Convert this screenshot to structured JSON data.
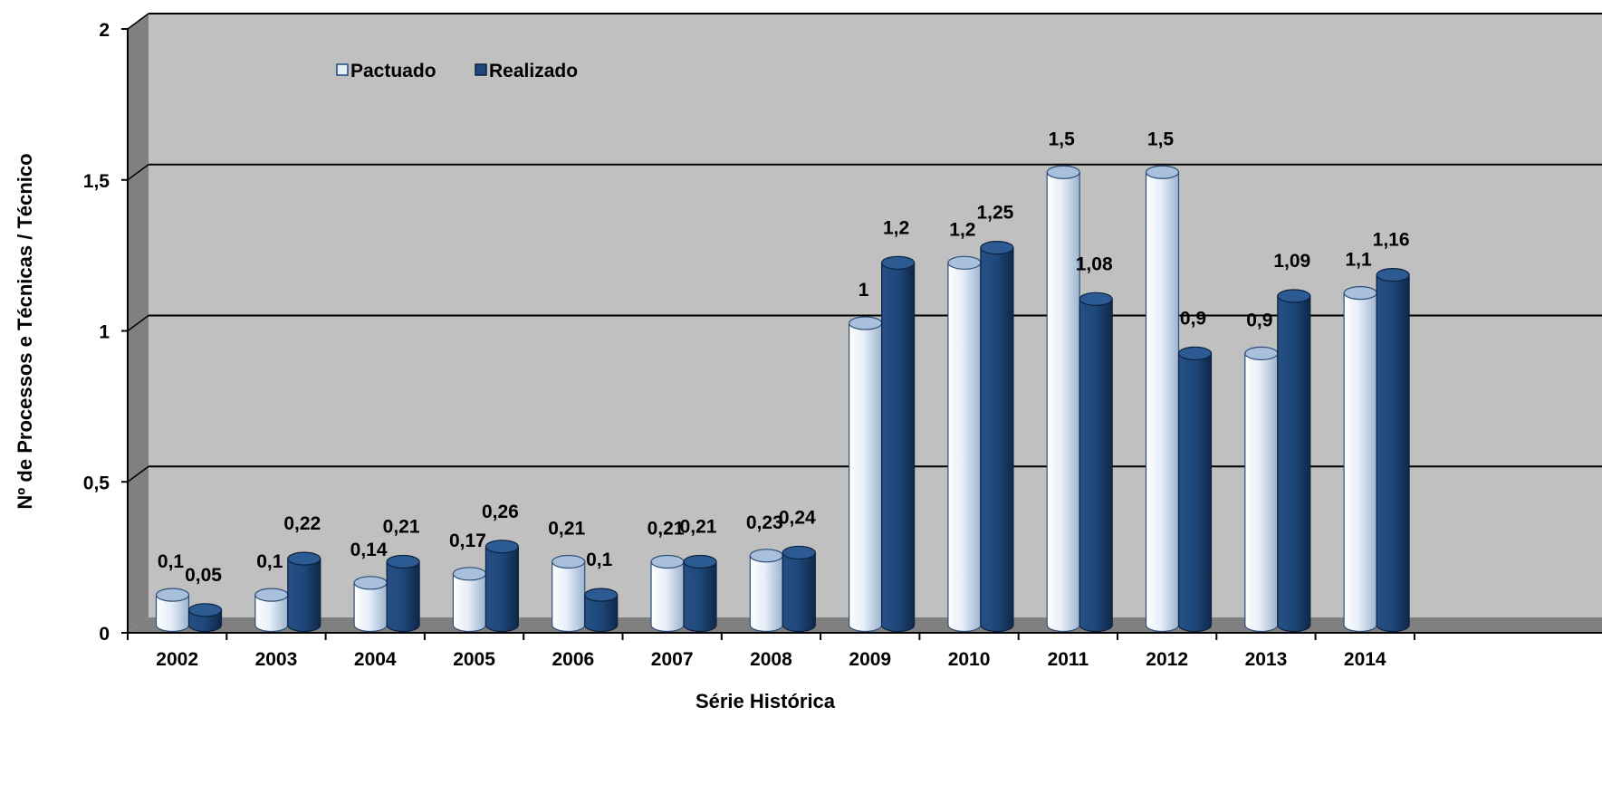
{
  "chart_data": {
    "type": "bar",
    "categories": [
      "2002",
      "2003",
      "2004",
      "2005",
      "2006",
      "2007",
      "2008",
      "2009",
      "2010",
      "2011",
      "2012",
      "2013",
      "2014"
    ],
    "series": [
      {
        "name": "Pactuado",
        "color": "#c6d9f1",
        "values": [
          0.1,
          0.1,
          0.14,
          0.17,
          0.21,
          0.21,
          0.23,
          1,
          1.2,
          1.5,
          1.5,
          0.9,
          1.1
        ],
        "labels": [
          "0,1",
          "0,1",
          "0,14",
          "0,17",
          "0,21",
          "0,21",
          "0,23",
          "1",
          "1,2",
          "1,5",
          "1,5",
          "0,9",
          "1,1"
        ]
      },
      {
        "name": "Realizado",
        "color": "#1f497d",
        "values": [
          0.05,
          0.22,
          0.21,
          0.26,
          0.1,
          0.21,
          0.24,
          1.2,
          1.25,
          1.08,
          0.9,
          1.09,
          1.16
        ],
        "labels": [
          "0,05",
          "0,22",
          "0,21",
          "0,26",
          "0,1",
          "0,21",
          "0,24",
          "1,2",
          "1,25",
          "1,08",
          "0,9",
          "1,09",
          "1,16"
        ]
      }
    ],
    "xlabel": "Série Histórica",
    "ylabel": "Nº de Processos e Técnicas / Técnico",
    "ylim": [
      0,
      2
    ],
    "yticks": [
      0,
      0.5,
      1,
      1.5,
      2
    ],
    "ytick_labels": [
      "0",
      "0,5",
      "1",
      "1,5",
      "2"
    ],
    "grid": true,
    "legend_position": "top-left",
    "colors": {
      "wall": "#c0c0c0",
      "side_wall": "#808080",
      "floor": "#808080",
      "gridline": "#000000"
    }
  }
}
